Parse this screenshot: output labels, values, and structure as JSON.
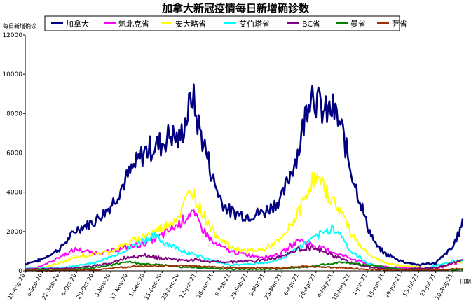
{
  "chart_data": {
    "type": "line",
    "title": "加拿大新冠疫情每日新增确诊数",
    "ylabel": "每日新增确诊",
    "xlabel": "日期",
    "ylim": [
      0,
      12000
    ],
    "yticks": [
      0,
      2000,
      4000,
      6000,
      8000,
      10000,
      12000
    ],
    "x_start": "2020-08-25",
    "x_end": "2021-08-18",
    "xtick_labels": [
      "25-Aug-20",
      "8-Sep-20",
      "22-Sep-20",
      "6-Oct-20",
      "20-Oct-20",
      "3-Nov-20",
      "17-Nov-20",
      "1-Dec-20",
      "15-Dec-20",
      "29-Dec-20",
      "12-Jan-21",
      "26-Jan-21",
      "9-Feb-21",
      "23-Feb-21",
      "9-Mar-21",
      "23-Mar-21",
      "6-Apr-21",
      "20-Apr-21",
      "4-May-21",
      "18-May-21",
      "1-Jun-21",
      "15-Jun-21",
      "29-Jun-21",
      "13-Jul-21",
      "27-Jul-21",
      "10-Aug-21"
    ],
    "grid": false,
    "legend_position": "top",
    "series": [
      {
        "name": "加拿大",
        "color": "#000080",
        "width": 2.6,
        "points": [
          [
            "2020-08-25",
            350
          ],
          [
            "2020-09-08",
            600
          ],
          [
            "2020-09-22",
            1100
          ],
          [
            "2020-10-06",
            2100
          ],
          [
            "2020-10-20",
            2500
          ],
          [
            "2020-11-03",
            3300
          ],
          [
            "2020-11-17",
            4800
          ],
          [
            "2020-12-01",
            6100
          ],
          [
            "2020-12-15",
            6500
          ],
          [
            "2020-12-22",
            7000
          ],
          [
            "2020-12-29",
            6600
          ],
          [
            "2021-01-05",
            8000
          ],
          [
            "2021-01-09",
            9000
          ],
          [
            "2021-01-12",
            7800
          ],
          [
            "2021-01-19",
            6300
          ],
          [
            "2021-01-26",
            4600
          ],
          [
            "2021-02-02",
            3500
          ],
          [
            "2021-02-09",
            3000
          ],
          [
            "2021-02-23",
            2800
          ],
          [
            "2021-03-09",
            3000
          ],
          [
            "2021-03-23",
            3700
          ],
          [
            "2021-04-06",
            6200
          ],
          [
            "2021-04-13",
            8500
          ],
          [
            "2021-04-16",
            9400
          ],
          [
            "2021-04-20",
            8700
          ],
          [
            "2021-04-27",
            8000
          ],
          [
            "2021-05-04",
            8200
          ],
          [
            "2021-05-11",
            7200
          ],
          [
            "2021-05-18",
            5300
          ],
          [
            "2021-05-25",
            3800
          ],
          [
            "2021-06-01",
            2300
          ],
          [
            "2021-06-08",
            1300
          ],
          [
            "2021-06-15",
            900
          ],
          [
            "2021-06-29",
            500
          ],
          [
            "2021-07-13",
            300
          ],
          [
            "2021-07-27",
            400
          ],
          [
            "2021-08-10",
            1200
          ],
          [
            "2021-08-18",
            2400
          ]
        ]
      },
      {
        "name": "魁北克省",
        "color": "#ff00ff",
        "width": 2,
        "points": [
          [
            "2020-08-25",
            100
          ],
          [
            "2020-09-08",
            250
          ],
          [
            "2020-09-22",
            700
          ],
          [
            "2020-10-06",
            1100
          ],
          [
            "2020-10-20",
            900
          ],
          [
            "2020-11-03",
            1000
          ],
          [
            "2020-11-17",
            1200
          ],
          [
            "2020-12-01",
            1400
          ],
          [
            "2020-12-15",
            1800
          ],
          [
            "2020-12-29",
            2400
          ],
          [
            "2021-01-08",
            3000
          ],
          [
            "2021-01-19",
            2000
          ],
          [
            "2021-01-26",
            1400
          ],
          [
            "2021-02-09",
            1000
          ],
          [
            "2021-02-23",
            800
          ],
          [
            "2021-03-09",
            700
          ],
          [
            "2021-03-23",
            900
          ],
          [
            "2021-04-06",
            1600
          ],
          [
            "2021-04-13",
            1400
          ],
          [
            "2021-04-27",
            1100
          ],
          [
            "2021-05-11",
            800
          ],
          [
            "2021-05-25",
            500
          ],
          [
            "2021-06-08",
            250
          ],
          [
            "2021-06-29",
            150
          ],
          [
            "2021-07-27",
            100
          ],
          [
            "2021-08-18",
            500
          ]
        ]
      },
      {
        "name": "安大略省",
        "color": "#ffff00",
        "width": 2,
        "points": [
          [
            "2020-08-25",
            100
          ],
          [
            "2020-09-08",
            150
          ],
          [
            "2020-09-22",
            400
          ],
          [
            "2020-10-06",
            700
          ],
          [
            "2020-10-20",
            850
          ],
          [
            "2020-11-03",
            1000
          ],
          [
            "2020-11-17",
            1400
          ],
          [
            "2020-12-01",
            1800
          ],
          [
            "2020-12-15",
            2200
          ],
          [
            "2020-12-29",
            2800
          ],
          [
            "2021-01-08",
            4200
          ],
          [
            "2021-01-15",
            3200
          ],
          [
            "2021-01-26",
            2000
          ],
          [
            "2021-02-09",
            1200
          ],
          [
            "2021-02-23",
            1000
          ],
          [
            "2021-03-09",
            1100
          ],
          [
            "2021-03-23",
            1600
          ],
          [
            "2021-04-06",
            3000
          ],
          [
            "2021-04-16",
            4500
          ],
          [
            "2021-04-20",
            4700
          ],
          [
            "2021-04-27",
            4200
          ],
          [
            "2021-05-04",
            3500
          ],
          [
            "2021-05-11",
            3000
          ],
          [
            "2021-05-18",
            2000
          ],
          [
            "2021-05-25",
            1400
          ],
          [
            "2021-06-01",
            900
          ],
          [
            "2021-06-15",
            400
          ],
          [
            "2021-06-29",
            250
          ],
          [
            "2021-07-27",
            150
          ],
          [
            "2021-08-18",
            500
          ]
        ]
      },
      {
        "name": "艾伯塔省",
        "color": "#00ffff",
        "width": 2,
        "points": [
          [
            "2020-08-25",
            100
          ],
          [
            "2020-09-08",
            150
          ],
          [
            "2020-09-22",
            150
          ],
          [
            "2020-10-06",
            250
          ],
          [
            "2020-10-20",
            400
          ],
          [
            "2020-11-03",
            700
          ],
          [
            "2020-11-17",
            1100
          ],
          [
            "2020-12-01",
            1600
          ],
          [
            "2020-12-08",
            1800
          ],
          [
            "2020-12-15",
            1500
          ],
          [
            "2020-12-29",
            1100
          ],
          [
            "2021-01-12",
            800
          ],
          [
            "2021-01-26",
            500
          ],
          [
            "2021-02-09",
            300
          ],
          [
            "2021-02-23",
            350
          ],
          [
            "2021-03-09",
            400
          ],
          [
            "2021-03-23",
            600
          ],
          [
            "2021-04-06",
            1200
          ],
          [
            "2021-04-20",
            1700
          ],
          [
            "2021-05-04",
            2200
          ],
          [
            "2021-05-11",
            1800
          ],
          [
            "2021-05-18",
            1000
          ],
          [
            "2021-06-01",
            400
          ],
          [
            "2021-06-15",
            150
          ],
          [
            "2021-07-13",
            50
          ],
          [
            "2021-08-18",
            600
          ]
        ]
      },
      {
        "name": "BC省",
        "color": "#800080",
        "width": 2,
        "points": [
          [
            "2020-08-25",
            80
          ],
          [
            "2020-09-08",
            100
          ],
          [
            "2020-09-22",
            120
          ],
          [
            "2020-10-06",
            150
          ],
          [
            "2020-10-20",
            250
          ],
          [
            "2020-11-03",
            400
          ],
          [
            "2020-11-17",
            700
          ],
          [
            "2020-12-01",
            800
          ],
          [
            "2020-12-15",
            650
          ],
          [
            "2020-12-29",
            550
          ],
          [
            "2021-01-12",
            550
          ],
          [
            "2021-01-26",
            450
          ],
          [
            "2021-02-09",
            450
          ],
          [
            "2021-02-23",
            500
          ],
          [
            "2021-03-09",
            550
          ],
          [
            "2021-03-23",
            750
          ],
          [
            "2021-04-06",
            1100
          ],
          [
            "2021-04-13",
            1200
          ],
          [
            "2021-04-27",
            950
          ],
          [
            "2021-05-11",
            600
          ],
          [
            "2021-05-25",
            300
          ],
          [
            "2021-06-08",
            150
          ],
          [
            "2021-06-29",
            80
          ],
          [
            "2021-07-27",
            150
          ],
          [
            "2021-08-18",
            550
          ]
        ]
      },
      {
        "name": "曼省",
        "color": "#008000",
        "width": 2,
        "points": [
          [
            "2020-08-25",
            20
          ],
          [
            "2020-09-22",
            50
          ],
          [
            "2020-10-06",
            100
          ],
          [
            "2020-10-20",
            150
          ],
          [
            "2020-11-03",
            300
          ],
          [
            "2020-11-17",
            450
          ],
          [
            "2020-12-01",
            350
          ],
          [
            "2020-12-15",
            300
          ],
          [
            "2020-12-29",
            200
          ],
          [
            "2021-01-26",
            120
          ],
          [
            "2021-02-23",
            80
          ],
          [
            "2021-03-23",
            100
          ],
          [
            "2021-04-20",
            250
          ],
          [
            "2021-05-11",
            450
          ],
          [
            "2021-05-25",
            350
          ],
          [
            "2021-06-08",
            250
          ],
          [
            "2021-06-29",
            80
          ],
          [
            "2021-07-27",
            40
          ],
          [
            "2021-08-18",
            60
          ]
        ]
      },
      {
        "name": "萨省",
        "color": "#993300",
        "width": 2,
        "points": [
          [
            "2020-08-25",
            10
          ],
          [
            "2020-09-22",
            20
          ],
          [
            "2020-10-20",
            50
          ],
          [
            "2020-11-17",
            200
          ],
          [
            "2020-12-01",
            250
          ],
          [
            "2020-12-15",
            250
          ],
          [
            "2021-01-12",
            250
          ],
          [
            "2021-01-26",
            200
          ],
          [
            "2021-02-23",
            150
          ],
          [
            "2021-03-23",
            150
          ],
          [
            "2021-04-06",
            220
          ],
          [
            "2021-04-27",
            200
          ],
          [
            "2021-05-11",
            150
          ],
          [
            "2021-05-25",
            100
          ],
          [
            "2021-06-15",
            50
          ],
          [
            "2021-07-27",
            40
          ],
          [
            "2021-08-18",
            120
          ]
        ]
      }
    ]
  }
}
